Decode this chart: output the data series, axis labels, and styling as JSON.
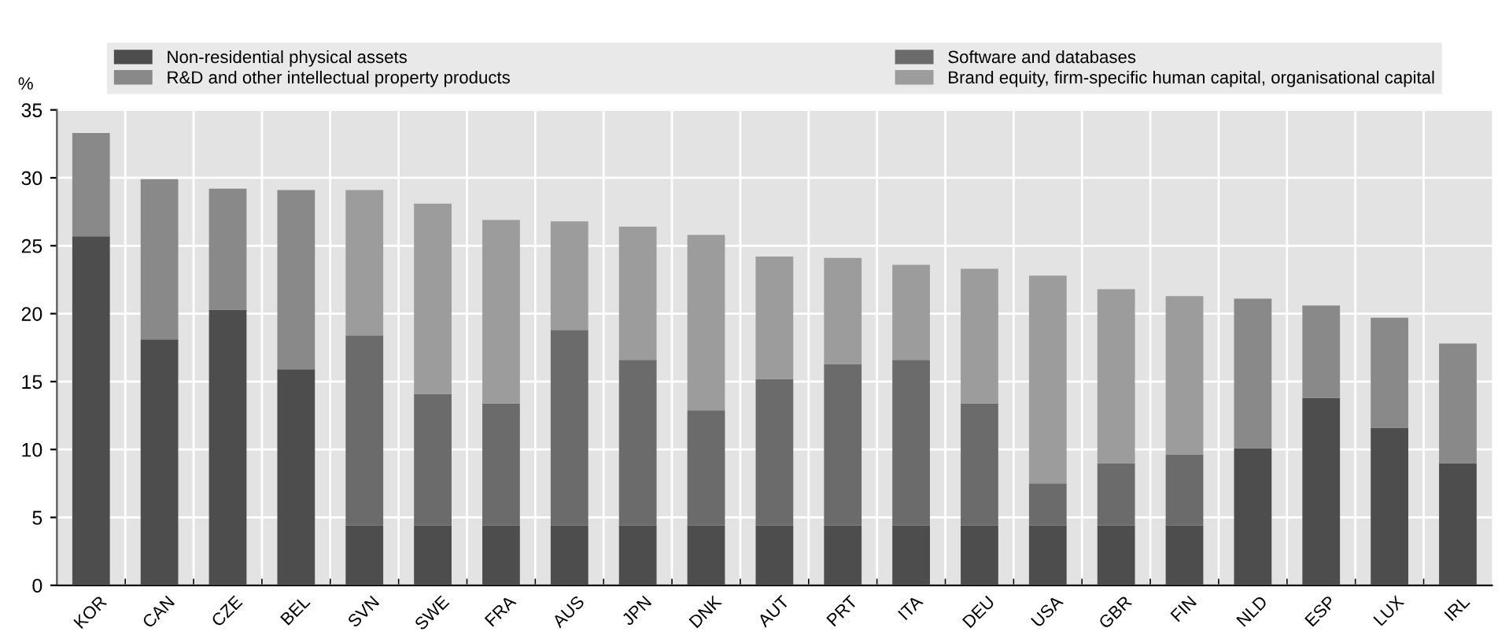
{
  "chart_data": {
    "type": "bar",
    "stacked": true,
    "ylabel": "%",
    "categories": [
      "KOR",
      "CAN",
      "CZE",
      "BEL",
      "SVN",
      "SWE",
      "FRA",
      "AUS",
      "JPN",
      "DNK",
      "AUT",
      "PRT",
      "ITA",
      "DEU",
      "USA",
      "GBR",
      "FIN",
      "NLD",
      "ESP",
      "LUX",
      "IRL"
    ],
    "series": [
      {
        "name": "Non-residential physical assets",
        "color": "#4d4d4d",
        "values": [
          25.7,
          18.1,
          20.3,
          15.9,
          4.4,
          4.4,
          4.4,
          4.4,
          4.4,
          4.4,
          4.4,
          4.4,
          4.4,
          4.4,
          4.4,
          4.4,
          4.4,
          10.1,
          13.8,
          11.6,
          9.0
        ]
      },
      {
        "name": "Software and databases",
        "color": "#6b6b6b",
        "values": [
          null,
          null,
          null,
          null,
          14.0,
          9.7,
          9.0,
          14.4,
          12.2,
          8.5,
          10.8,
          11.9,
          12.2,
          9.0,
          3.1,
          4.6,
          5.2,
          null,
          null,
          null,
          null
        ]
      },
      {
        "name": "R&D and other intellectual property products",
        "color": "#898989",
        "values": [
          7.6,
          11.8,
          8.9,
          13.2,
          null,
          null,
          null,
          null,
          null,
          null,
          null,
          null,
          null,
          null,
          null,
          null,
          null,
          11.0,
          6.8,
          8.1,
          8.8
        ]
      },
      {
        "name": "Brand equity, firm-specific human capital, organisational capital",
        "color": "#9c9c9c",
        "values": [
          null,
          null,
          null,
          null,
          10.7,
          14.0,
          13.5,
          8.0,
          9.8,
          12.9,
          9.0,
          7.8,
          7.0,
          9.9,
          15.3,
          12.8,
          11.7,
          null,
          null,
          null,
          null
        ]
      }
    ],
    "ylim": [
      0,
      35
    ],
    "yticks": [
      0,
      5,
      10,
      15,
      20,
      25,
      30,
      35
    ],
    "grid": true,
    "legend": "top"
  }
}
